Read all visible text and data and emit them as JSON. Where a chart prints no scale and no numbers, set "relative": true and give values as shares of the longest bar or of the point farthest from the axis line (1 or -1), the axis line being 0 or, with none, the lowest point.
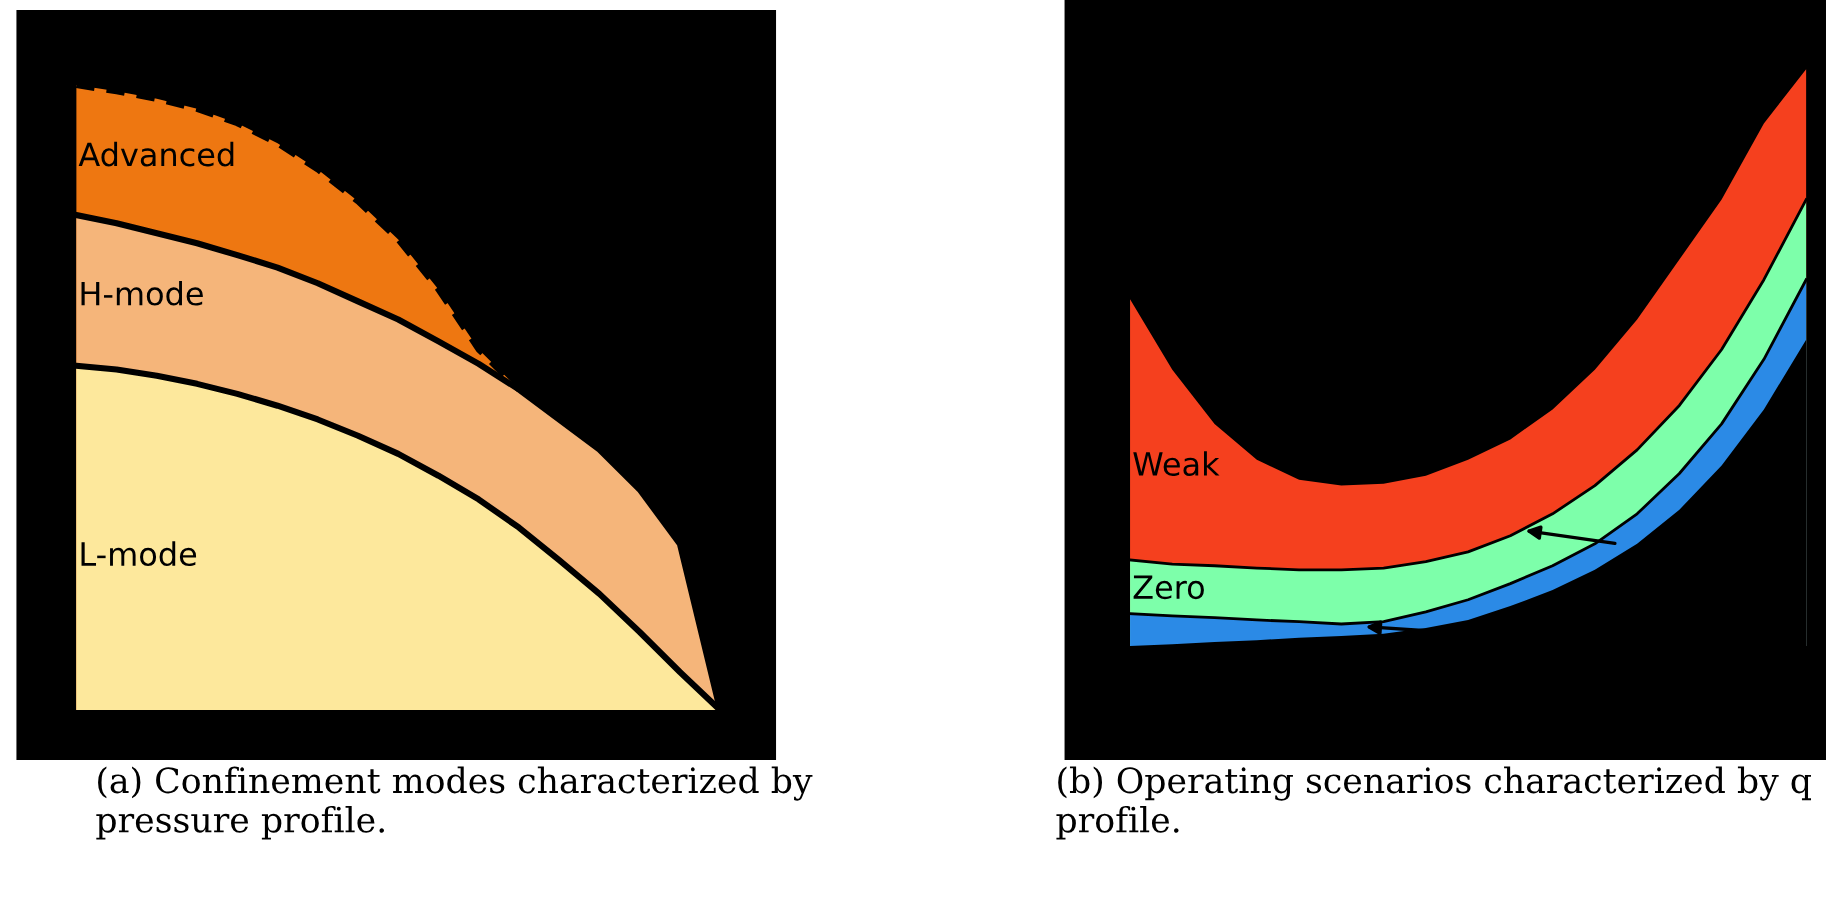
{
  "chart_data": [
    {
      "type": "area",
      "relative": true,
      "title": "(a) Confinement modes characterized by pressure profile.",
      "categories": [
        null,
        null,
        null,
        null,
        null,
        null,
        null,
        null,
        null,
        null,
        null,
        null,
        null,
        null,
        null,
        null,
        null
      ],
      "series": [
        {
          "name": "Advanced",
          "color": "#ee7711",
          "line_style": "dashed",
          "values": [
            1,
            0.99,
            0.978,
            0.962,
            0.939,
            0.907,
            0.865,
            0.814,
            0.753,
            0.673,
            0.577,
            0.513,
            null,
            null,
            null,
            null,
            null
          ]
        },
        {
          "name": "H-mode",
          "color": "#f5b57a",
          "line_style": "solid",
          "values": [
            0.792,
            0.779,
            0.763,
            0.747,
            0.728,
            0.708,
            0.683,
            0.654,
            0.625,
            0.59,
            0.554,
            0.513,
            0.465,
            0.417,
            0.353,
            0.266,
            0
          ]
        },
        {
          "name": "L-mode",
          "color": "#fde89c",
          "line_style": "solid",
          "values": [
            0.551,
            0.545,
            0.535,
            0.522,
            0.506,
            0.487,
            0.465,
            0.439,
            0.41,
            0.375,
            0.337,
            0.292,
            0.24,
            0.186,
            0.125,
            0.061,
            0
          ]
        }
      ]
    },
    {
      "type": "area",
      "relative": true,
      "title": "(b) Operating scenarios characterized by q profile.",
      "categories": [
        null,
        null,
        null,
        null,
        null,
        null,
        null,
        null,
        null,
        null,
        null,
        null,
        null,
        null,
        null,
        null,
        null
      ],
      "series": [
        {
          "name": "Weak",
          "color": "#f5401e",
          "values": [
            0.601,
            0.479,
            0.385,
            0.323,
            0.288,
            0.278,
            0.281,
            0.295,
            0.323,
            0.358,
            0.41,
            0.479,
            0.566,
            0.67,
            0.774,
            0.906,
            1
          ]
        },
        {
          "name": "Zero",
          "color": "#7dffaa",
          "line_style": "solid",
          "values": [
            0.149,
            0.142,
            0.139,
            0.135,
            0.132,
            0.132,
            0.135,
            0.146,
            0.163,
            0.191,
            0.229,
            0.278,
            0.34,
            0.417,
            0.514,
            0.635,
            0.774
          ]
        },
        {
          "color": "#2b8ae6",
          "line_style": "solid",
          "values": [
            0.056,
            0.052,
            0.049,
            0.045,
            0.042,
            0.038,
            0.042,
            0.059,
            0.08,
            0.108,
            0.139,
            0.177,
            0.229,
            0.299,
            0.385,
            0.497,
            0.635
          ]
        },
        {
          "color": "#000000",
          "values": [
            0,
            0.003,
            0.007,
            0.01,
            0.014,
            0.017,
            0.021,
            0.031,
            0.045,
            0.069,
            0.097,
            0.132,
            0.177,
            0.236,
            0.313,
            0.41,
            0.531
          ]
        }
      ]
    }
  ]
}
